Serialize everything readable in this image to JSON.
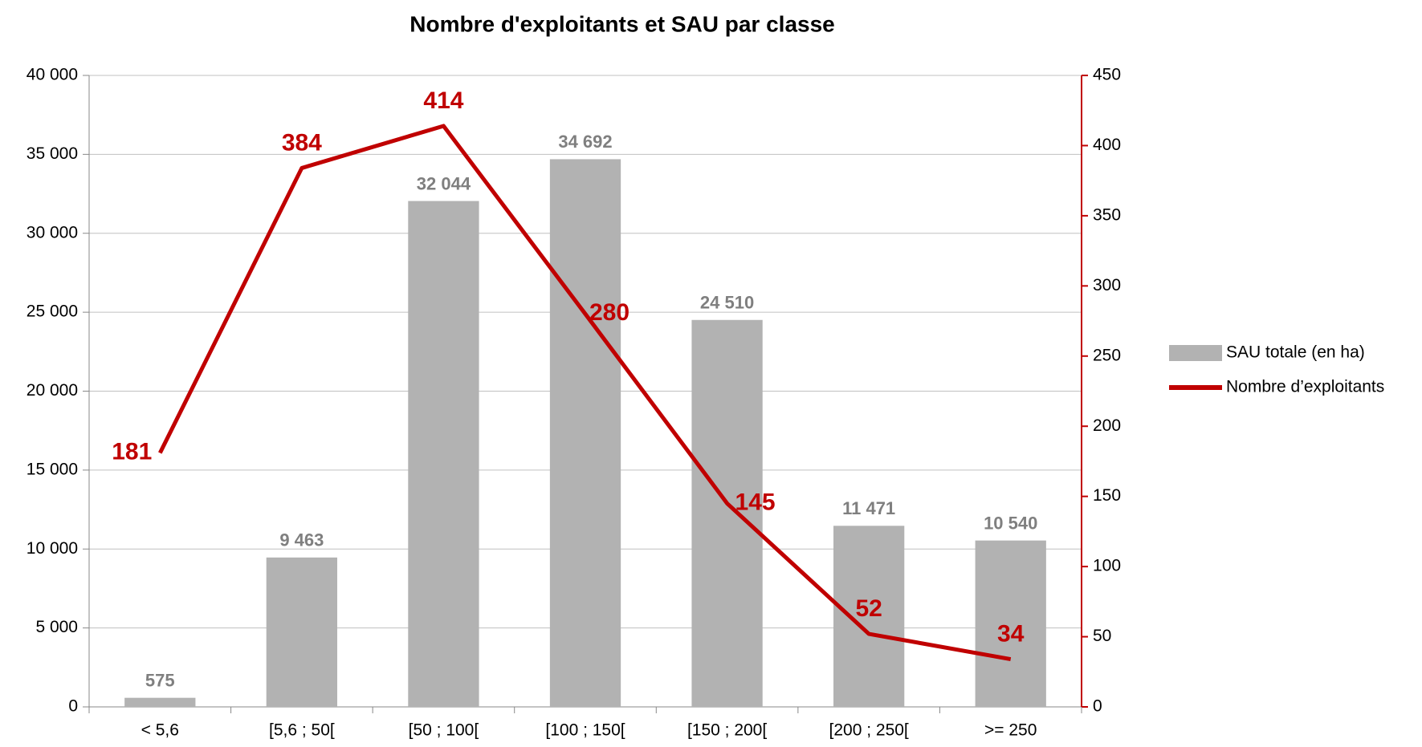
{
  "chart_data": {
    "type": "bar_line",
    "title": "Nombre d'exploitants et SAU par classe",
    "categories": [
      "< 5,6",
      "[5,6 ; 50[",
      "[50 ; 100[",
      "[100 ; 150[",
      "[150 ; 200[",
      "[200 ; 250[",
      ">= 250"
    ],
    "series": [
      {
        "name": "SAU totale (en ha)",
        "type": "bar",
        "color": "#b2b2b2",
        "label_color": "#7f7f7f",
        "values": [
          575,
          9463,
          32044,
          34692,
          24510,
          11471,
          10540
        ],
        "value_labels": [
          "575",
          "9 463",
          "32 044",
          "34 692",
          "24 510",
          "11 471",
          "10 540"
        ]
      },
      {
        "name": "Nombre d’exploitants",
        "type": "line",
        "axis": "y2",
        "color": "#c00000",
        "values": [
          181,
          384,
          414,
          280,
          145,
          52,
          34
        ]
      }
    ],
    "ylim": [
      0,
      40000
    ],
    "yticks": [
      {
        "value": 0,
        "label": "0"
      },
      {
        "value": 5000,
        "label": "5 000"
      },
      {
        "value": 10000,
        "label": "10 000"
      },
      {
        "value": 15000,
        "label": "15 000"
      },
      {
        "value": 20000,
        "label": "20 000"
      },
      {
        "value": 25000,
        "label": "25 000"
      },
      {
        "value": 30000,
        "label": "30 000"
      },
      {
        "value": 35000,
        "label": "35 000"
      },
      {
        "value": 40000,
        "label": "40 000"
      }
    ],
    "y2lim": [
      0,
      450
    ],
    "y2ticks": [
      0,
      50,
      100,
      150,
      200,
      250,
      300,
      350,
      400,
      450
    ],
    "grid": true,
    "legend": "right"
  }
}
